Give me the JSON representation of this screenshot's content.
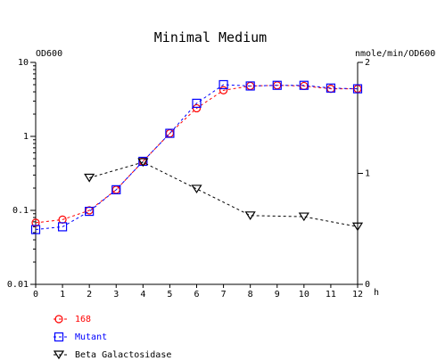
{
  "chart_data": {
    "type": "line",
    "title": "Minimal Medium",
    "xlabel": "h",
    "ylabel_left": "OD600",
    "ylabel_right": "nmole/min/OD600",
    "x_ticks": [
      "0",
      "1",
      "2",
      "3",
      "4",
      "5",
      "6",
      "7",
      "8",
      "9",
      "10",
      "11",
      "12"
    ],
    "xlim": [
      0,
      12
    ],
    "y_left": {
      "scale": "log",
      "range": [
        0.01,
        10
      ],
      "ticks": [
        "10",
        "1",
        "0.1",
        "0.01"
      ]
    },
    "y_right": {
      "scale": "linear",
      "range": [
        0,
        2
      ],
      "ticks": [
        "2",
        "1",
        "0"
      ]
    },
    "grid": false,
    "legend_position": "bottom-left",
    "series": [
      {
        "name": "168",
        "axis": "left",
        "color": "#ff0000",
        "line_color": "#ff0000",
        "marker": "circle",
        "x": [
          0,
          1,
          2,
          3,
          4,
          5,
          6,
          7,
          8,
          9,
          10,
          11,
          12
        ],
        "y": [
          0.068,
          0.075,
          0.1,
          0.19,
          0.46,
          1.1,
          2.4,
          4.2,
          4.8,
          4.9,
          4.8,
          4.4,
          4.4
        ]
      },
      {
        "name": "Mutant",
        "axis": "left",
        "color": "#0000ff",
        "line_color": "#0000ff",
        "marker": "square",
        "x": [
          0,
          1,
          2,
          3,
          4,
          5,
          6,
          7,
          8,
          9,
          10,
          11,
          12
        ],
        "y": [
          0.055,
          0.06,
          0.097,
          0.19,
          0.46,
          1.1,
          2.8,
          5.0,
          4.8,
          4.9,
          4.9,
          4.5,
          4.4
        ]
      },
      {
        "name": "Beta Galactosidase",
        "axis": "right",
        "color": "#000000",
        "line_color": "#000000",
        "marker": "triangle-down",
        "x": [
          2,
          4,
          6,
          8,
          10,
          12
        ],
        "y": [
          0.96,
          1.1,
          0.86,
          0.62,
          0.61,
          0.52
        ]
      }
    ]
  }
}
